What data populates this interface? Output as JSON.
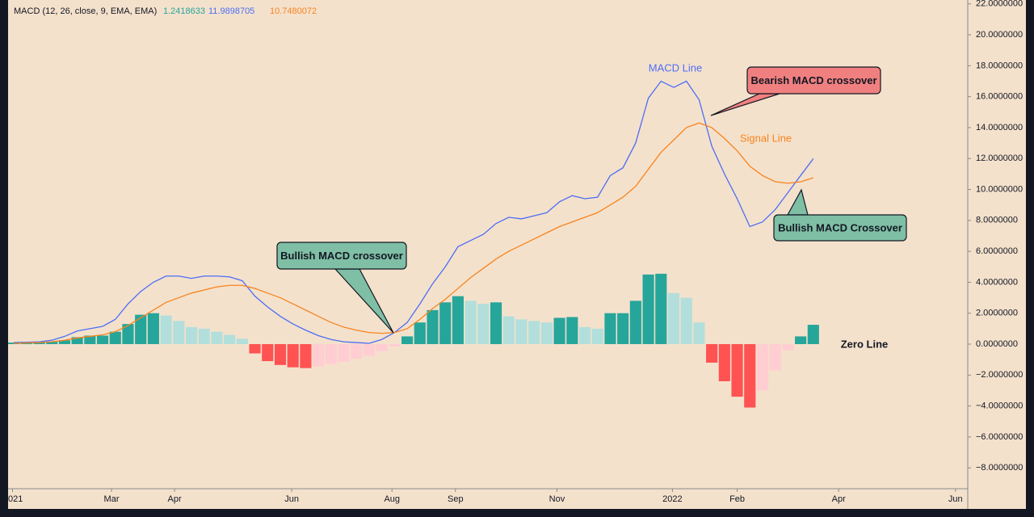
{
  "chart_data": {
    "type": "line",
    "title": "MACD (12, 26, close, 9, EMA, EMA)",
    "x": [
      0,
      1,
      2,
      3,
      4,
      5,
      6,
      7,
      8,
      9,
      10,
      11,
      12,
      13,
      14,
      15,
      16,
      17,
      18,
      19,
      20,
      21,
      22,
      23,
      24,
      25,
      26,
      27,
      28,
      29,
      30,
      31,
      32,
      33,
      34,
      35,
      36,
      37,
      38,
      39,
      40,
      41,
      42,
      43,
      44,
      45,
      46,
      47,
      48,
      49,
      50,
      51,
      52,
      53,
      54,
      55,
      56,
      57,
      58,
      59,
      60,
      61,
      62,
      63
    ],
    "xlim": [
      -0.45,
      75.17
    ],
    "xticks": [
      {
        "value": -0.1,
        "label": "021"
      },
      {
        "value": 7.7,
        "label": "Mar"
      },
      {
        "value": 12.67,
        "label": "Apr"
      },
      {
        "value": 21.9,
        "label": "Jun"
      },
      {
        "value": 29.8,
        "label": "Aug"
      },
      {
        "value": 34.8,
        "label": "Sep"
      },
      {
        "value": 42.8,
        "label": "Nov"
      },
      {
        "value": 51.9,
        "label": "2022"
      },
      {
        "value": 57.0,
        "label": "Feb"
      },
      {
        "value": 65.0,
        "label": "Apr"
      },
      {
        "value": 74.2,
        "label": "Jun"
      }
    ],
    "ylim": [
      -9.35,
      22.25
    ],
    "yticks": [
      {
        "value": 22,
        "label": "22.0000000"
      },
      {
        "value": 20,
        "label": "20.0000000"
      },
      {
        "value": 18,
        "label": "18.0000000"
      },
      {
        "value": 16,
        "label": "16.0000000"
      },
      {
        "value": 14,
        "label": "14.0000000"
      },
      {
        "value": 12,
        "label": "12.0000000"
      },
      {
        "value": 10,
        "label": "10.0000000"
      },
      {
        "value": 8,
        "label": "8.0000000"
      },
      {
        "value": 6,
        "label": "6.0000000"
      },
      {
        "value": 4,
        "label": "4.0000000"
      },
      {
        "value": 2,
        "label": "2.0000000"
      },
      {
        "value": 0,
        "label": "0.0000000"
      },
      {
        "value": -2,
        "label": "−2.0000000"
      },
      {
        "value": -4,
        "label": "−4.0000000"
      },
      {
        "value": -6,
        "label": "−6.0000000"
      },
      {
        "value": -8,
        "label": "−8.0000000"
      }
    ],
    "grid": false,
    "series": [
      {
        "type": "bar",
        "last_value": 1.2418633,
        "color": "#26a69a",
        "colors": {
          "positive_rising": "#26a69a",
          "positive_falling": "#b2dfdb",
          "negative_falling": "#ff5252",
          "negative_rising": "#ffcdd2"
        },
        "values": [
          0.1,
          0.1,
          0.15,
          0.15,
          0.25,
          0.45,
          0.55,
          0.55,
          0.8,
          1.3,
          1.9,
          2.0,
          1.85,
          1.5,
          1.1,
          1.0,
          0.8,
          0.6,
          0.35,
          -0.6,
          -1.1,
          -1.35,
          -1.5,
          -1.55,
          -1.45,
          -1.3,
          -1.15,
          -0.95,
          -0.75,
          -0.45,
          -0.15,
          0.5,
          1.4,
          2.2,
          2.7,
          3.1,
          2.8,
          2.6,
          2.7,
          1.8,
          1.6,
          1.5,
          1.4,
          1.7,
          1.75,
          1.1,
          1.0,
          2.0,
          2.0,
          2.8,
          4.5,
          4.55,
          3.3,
          3.0,
          1.4,
          -1.2,
          -2.4,
          -3.4,
          -4.1,
          -3.0,
          -1.7,
          -0.4,
          0.5,
          1.25
        ]
      },
      {
        "type": "line",
        "name": "MACD Line",
        "last_value": 11.9898705,
        "color": "#4c6ef5",
        "values": [
          0.1,
          0.12,
          0.15,
          0.25,
          0.5,
          0.85,
          1.0,
          1.15,
          1.6,
          2.6,
          3.4,
          4.0,
          4.4,
          4.4,
          4.25,
          4.4,
          4.4,
          4.35,
          4.1,
          3.1,
          2.4,
          1.8,
          1.3,
          0.9,
          0.55,
          0.3,
          0.15,
          0.1,
          0.05,
          0.3,
          0.75,
          1.4,
          2.6,
          3.9,
          5.0,
          6.3,
          6.7,
          7.1,
          7.8,
          8.2,
          8.1,
          8.3,
          8.5,
          9.2,
          9.6,
          9.4,
          9.5,
          10.9,
          11.4,
          13.0,
          15.9,
          17.0,
          16.6,
          17.0,
          15.8,
          12.8,
          11.0,
          9.4,
          7.6,
          7.9,
          8.7,
          9.8,
          10.9,
          11.99
        ]
      },
      {
        "type": "line",
        "name": "Signal Line",
        "last_value": 10.7480072,
        "color": "#f7841e",
        "values": [
          0.05,
          0.08,
          0.1,
          0.15,
          0.25,
          0.4,
          0.5,
          0.6,
          0.8,
          1.2,
          1.7,
          2.2,
          2.7,
          3.0,
          3.3,
          3.5,
          3.7,
          3.8,
          3.8,
          3.6,
          3.3,
          3.0,
          2.6,
          2.2,
          1.8,
          1.4,
          1.1,
          0.9,
          0.75,
          0.7,
          0.75,
          1.0,
          1.6,
          2.3,
          2.9,
          3.6,
          4.3,
          4.9,
          5.5,
          6.0,
          6.4,
          6.8,
          7.2,
          7.6,
          7.9,
          8.2,
          8.5,
          9.0,
          9.5,
          10.2,
          11.3,
          12.4,
          13.2,
          14.0,
          14.3,
          14.0,
          13.3,
          12.5,
          11.5,
          10.9,
          10.5,
          10.4,
          10.5,
          10.75
        ]
      }
    ],
    "annotations": [
      "Bearish MACD crossover",
      "Bullish MACD crossover",
      "Bullish MACD Crossover",
      "Zero Line"
    ]
  }
}
